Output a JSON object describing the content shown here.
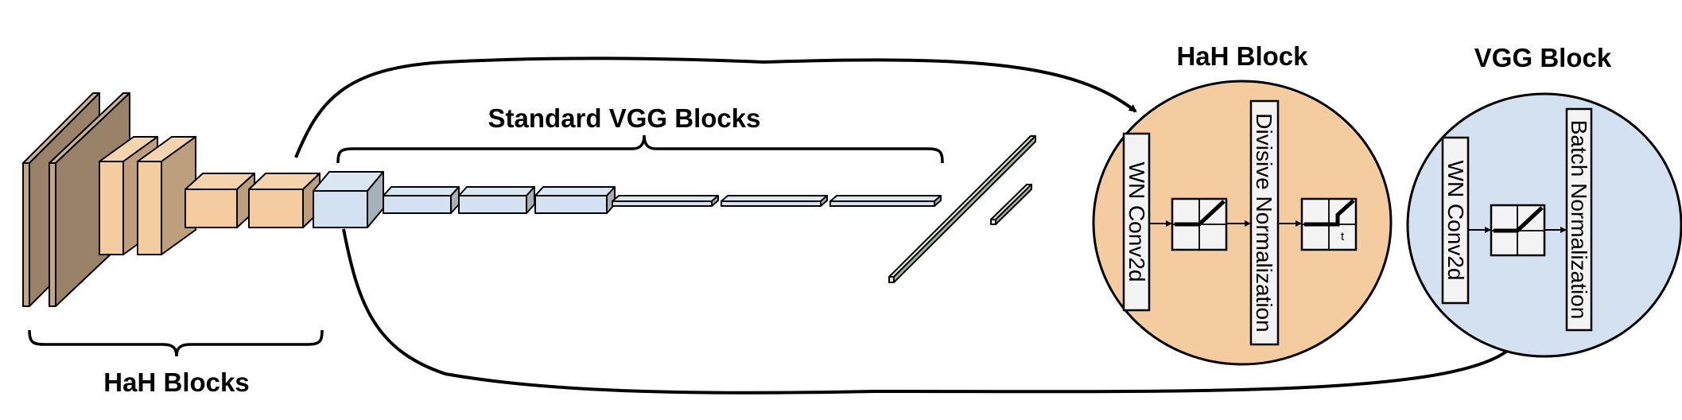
{
  "labels": {
    "hah_blocks": "HaH Blocks",
    "standard_vgg_blocks": "Standard VGG Blocks",
    "hah_block": "HaH Block",
    "vgg_block": "VGG Block"
  },
  "hah_block_detail": {
    "layer_1": "WN Conv2d",
    "layer_2": "Divisive Normalization",
    "threshold_symbol": "t"
  },
  "vgg_block_detail": {
    "layer_1": "WN Conv2d",
    "layer_2": "Batch Normalization"
  },
  "colors": {
    "hah_dark": "#c4a784",
    "hah_light": "#f4cca0",
    "vgg_light": "#d3e1f0",
    "dense_green": "#d5e7c9",
    "layer_box": "#f3f3f3",
    "outline": "#000000"
  }
}
